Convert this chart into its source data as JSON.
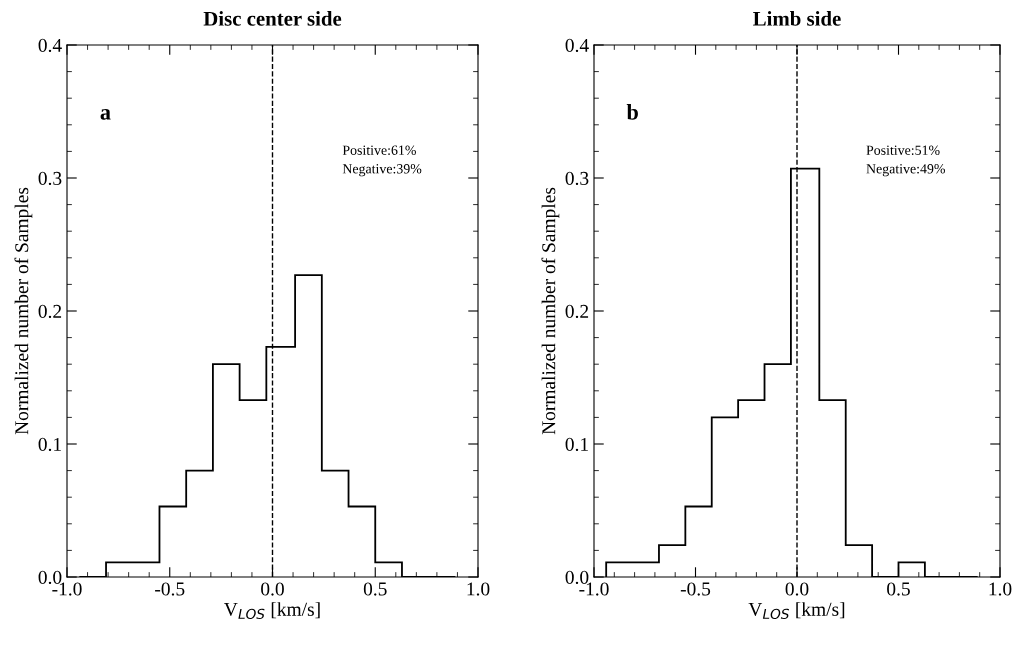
{
  "chart_data": [
    {
      "type": "histogram",
      "title": "Disc center side",
      "xlabel": "V$_{LOS}$ [km/s]",
      "ylabel": "Normalized number of Samples",
      "bins": [
        -0.94,
        -0.81,
        -0.68,
        -0.55,
        -0.42,
        -0.29,
        -0.16,
        -0.03,
        0.11,
        0.24,
        0.37,
        0.5,
        0.63,
        0.76,
        0.89
      ],
      "values": [
        0,
        0.011,
        0.011,
        0.053,
        0.08,
        0.16,
        0.133,
        0.173,
        0.227,
        0.08,
        0.053,
        0.011,
        0,
        0
      ],
      "color": "#000000",
      "xlim": [
        -1.0,
        1.0
      ],
      "xticks": [
        {
          "value": -1.0,
          "label": "-1.0"
        },
        {
          "value": -0.5,
          "label": "-0.5"
        },
        {
          "value": 0.0,
          "label": "0.0"
        },
        {
          "value": 0.5,
          "label": "0.5"
        },
        {
          "value": 1.0,
          "label": "1.0"
        }
      ],
      "ylim": [
        0,
        0.4
      ],
      "yticks": [
        {
          "value": 0,
          "label": "0.0"
        },
        0.1,
        0.2,
        0.3,
        0.4
      ],
      "ref_lines": [
        {
          "axis": "x",
          "value": 0,
          "color": "#000000",
          "line_style": "dashed"
        }
      ],
      "annotations": [
        "a",
        "Positive:61%",
        "Negative:39%"
      ],
      "grid": false,
      "legend": false
    },
    {
      "type": "histogram",
      "title": "Limb side",
      "xlabel": "V$_{LOS}$ [km/s]",
      "ylabel": "Normalized number of Samples",
      "bins": [
        -0.94,
        -0.81,
        -0.68,
        -0.55,
        -0.42,
        -0.29,
        -0.16,
        -0.03,
        0.11,
        0.24,
        0.37,
        0.5,
        0.63,
        0.76,
        0.89
      ],
      "values": [
        0.011,
        0.011,
        0.024,
        0.053,
        0.12,
        0.133,
        0.16,
        0.307,
        0.133,
        0.024,
        0,
        0.011,
        0,
        0
      ],
      "color": "#000000",
      "xlim": [
        -1.0,
        1.0
      ],
      "xticks": [
        {
          "value": -1.0,
          "label": "-1.0"
        },
        {
          "value": -0.5,
          "label": "-0.5"
        },
        {
          "value": 0.0,
          "label": "0.0"
        },
        {
          "value": 0.5,
          "label": "0.5"
        },
        {
          "value": 1.0,
          "label": "1.0"
        }
      ],
      "ylim": [
        0,
        0.4
      ],
      "yticks": [
        {
          "value": 0,
          "label": "0.0"
        },
        0.1,
        0.2,
        0.3,
        0.4
      ],
      "ref_lines": [
        {
          "axis": "x",
          "value": 0,
          "color": "#000000",
          "line_style": "dashed"
        }
      ],
      "annotations": [
        "b",
        "Positive:51%",
        "Negative:49%"
      ],
      "grid": false,
      "legend": false
    }
  ]
}
